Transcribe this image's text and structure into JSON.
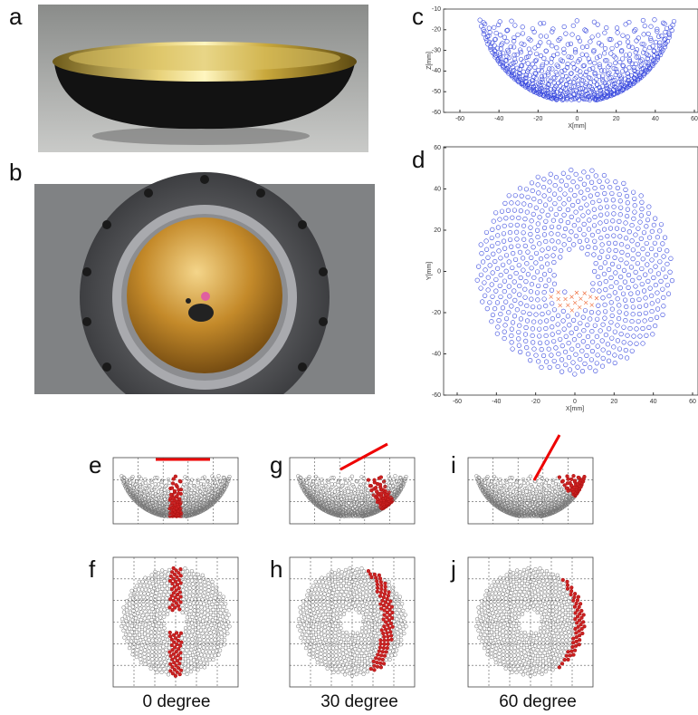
{
  "panels": {
    "a": {
      "label": "a"
    },
    "b": {
      "label": "b"
    },
    "c": {
      "label": "c",
      "x_label": "X[mm]",
      "y_label": "Z[mm]",
      "xticks": [
        -60,
        -40,
        -20,
        0,
        20,
        40,
        60
      ],
      "yticks": [
        -10,
        -20,
        -30,
        -40,
        -50,
        -60
      ]
    },
    "d": {
      "label": "d",
      "x_label": "X[mm]",
      "y_label": "Y[mm]",
      "xticks": [
        -60,
        -40,
        -20,
        0,
        20,
        40,
        60
      ],
      "yticks": [
        60,
        40,
        20,
        0,
        -20,
        -40,
        -60
      ]
    },
    "e": {
      "label": "e"
    },
    "f": {
      "label": "f"
    },
    "g": {
      "label": "g"
    },
    "h": {
      "label": "h"
    },
    "i": {
      "label": "i"
    },
    "j": {
      "label": "j"
    }
  },
  "captions": [
    "0 degree",
    "30 degree",
    "60 degree"
  ]
}
